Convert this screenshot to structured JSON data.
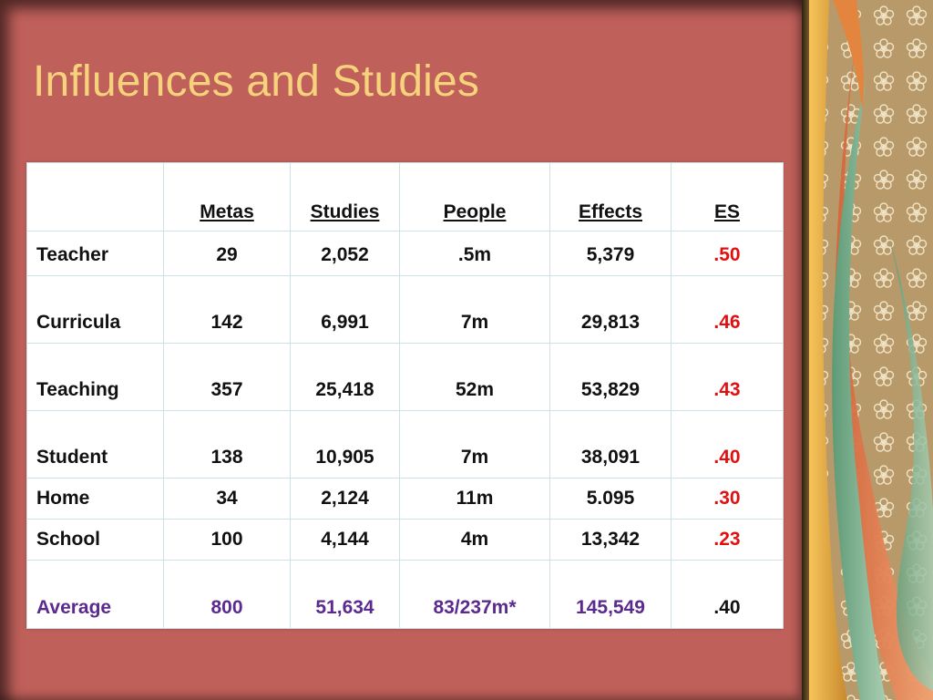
{
  "slide": {
    "title": "Influences and Studies"
  },
  "table": {
    "headers": [
      "",
      "Metas",
      "Studies",
      "People",
      "Effects",
      "ES"
    ],
    "rows": [
      {
        "label": "Teacher",
        "metas": "29",
        "studies": "2,052",
        "people": ".5m",
        "effects": "5,379",
        "es": ".50"
      },
      {
        "label": "Curricula",
        "metas": "142",
        "studies": "6,991",
        "people": "7m",
        "effects": "29,813",
        "es": ".46"
      },
      {
        "label": "Teaching",
        "metas": "357",
        "studies": "25,418",
        "people": "52m",
        "effects": "53,829",
        "es": ".43"
      },
      {
        "label": "Student",
        "metas": "138",
        "studies": "10,905",
        "people": "7m",
        "effects": "38,091",
        "es": ".40"
      },
      {
        "label": "Home",
        "metas": "34",
        "studies": "2,124",
        "people": "11m",
        "effects": "5.095",
        "es": ".30"
      },
      {
        "label": "School",
        "metas": "100",
        "studies": "4,144",
        "people": "4m",
        "effects": "13,342",
        "es": ".23"
      }
    ],
    "average": {
      "label": "Average",
      "metas": "800",
      "studies": "51,634",
      "people": "83/237m*",
      "effects": "145,549",
      "es": ".40"
    }
  },
  "colors": {
    "slide_background": "#c0605a",
    "title": "#f7d27c",
    "es_highlight": "#e01010",
    "average_row": "#5b2a8f"
  },
  "decoration": {
    "right_panel": "floral-pattern-with-drapes"
  }
}
